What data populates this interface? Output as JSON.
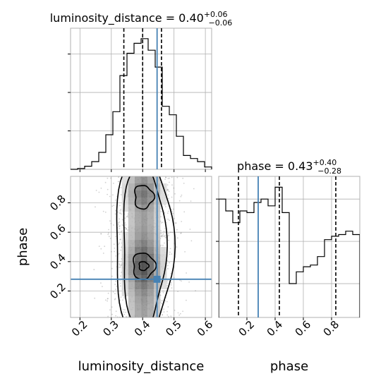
{
  "chart_data": {
    "type": "corner",
    "truth_color": "#4682b4",
    "parameters": [
      {
        "name": "luminosity_distance",
        "label": "luminosity_distance",
        "title_text": "luminosity_distance = 0.40",
        "title_sup": "+0.06",
        "title_sub": "−0.06",
        "range": [
          0.17,
          0.62
        ],
        "ticks": [
          0.2,
          0.3,
          0.4,
          0.5,
          0.6
        ],
        "tick_labels": [
          "0.2",
          "0.3",
          "0.4",
          "0.5",
          "0.6"
        ],
        "quantiles": [
          0.34,
          0.4,
          0.46
        ],
        "truth": 0.446,
        "histogram": {
          "bin_edges": [
            0.17,
            0.1925,
            0.215,
            0.2375,
            0.26,
            0.2825,
            0.305,
            0.3275,
            0.35,
            0.3725,
            0.395,
            0.4175,
            0.44,
            0.4625,
            0.485,
            0.5075,
            0.53,
            0.5525,
            0.575,
            0.5975,
            0.62
          ],
          "counts": [
            0,
            1,
            4,
            10,
            22,
            45,
            75,
            122,
            151,
            164,
            170,
            155,
            133,
            82,
            71,
            43,
            18,
            14,
            10,
            3
          ]
        }
      },
      {
        "name": "phase",
        "label": "phase",
        "title_text": "phase = 0.43",
        "title_sup": "+0.40",
        "title_sub": "−0.28",
        "range": [
          0.0,
          1.0
        ],
        "ticks": [
          0.2,
          0.4,
          0.6,
          0.8
        ],
        "tick_labels": [
          "0.2",
          "0.4",
          "0.6",
          "0.8"
        ],
        "quantiles": [
          0.14,
          0.43,
          0.83
        ],
        "truth": 0.28,
        "histogram": {
          "bin_edges": [
            0.0,
            0.05,
            0.1,
            0.15,
            0.2,
            0.25,
            0.3,
            0.35,
            0.4,
            0.45,
            0.5,
            0.55,
            0.6,
            0.65,
            0.7,
            0.75,
            0.8,
            0.85,
            0.9,
            0.95,
            1.0
          ],
          "counts": [
            100,
            93,
            86,
            93,
            92,
            98,
            100,
            96,
            107,
            92,
            50,
            57,
            60,
            61,
            66,
            76,
            78,
            79,
            81,
            79
          ]
        }
      }
    ],
    "joint": {
      "x": "luminosity_distance",
      "y": "phase",
      "xlim": [
        0.17,
        0.62
      ],
      "ylim": [
        0.02,
        0.98
      ],
      "mode_x": 0.403,
      "mode_y": 0.37
    }
  }
}
